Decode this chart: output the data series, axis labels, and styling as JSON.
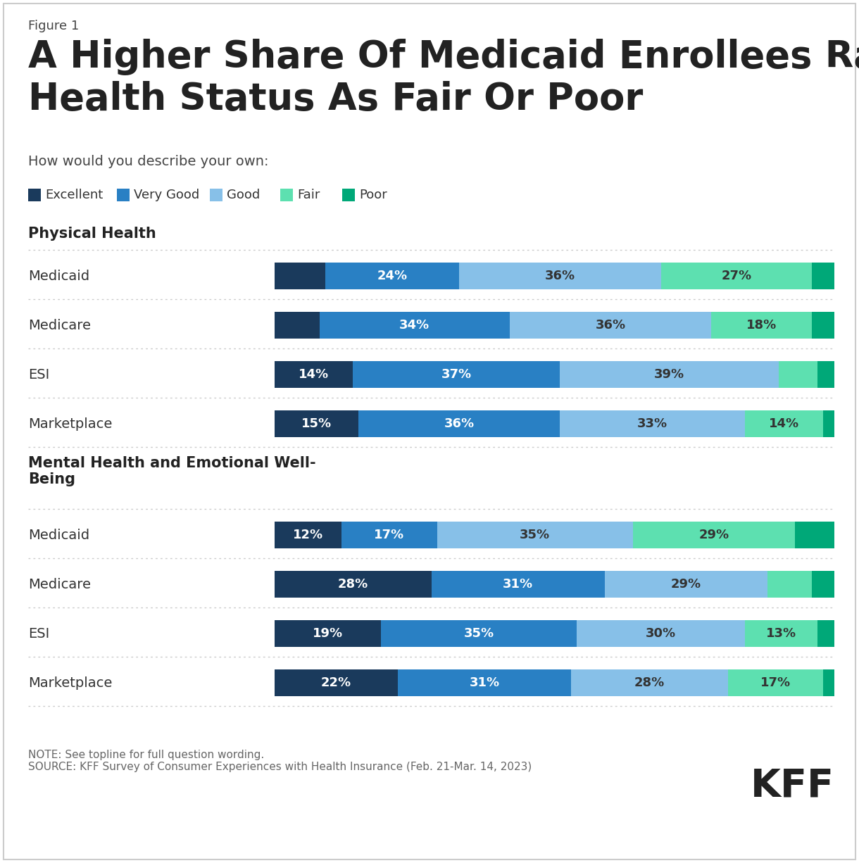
{
  "figure_label": "Figure 1",
  "title": "A Higher Share Of Medicaid Enrollees Rate Their\nHealth Status As Fair Or Poor",
  "subtitle": "How would you describe your own:",
  "categories": [
    "Excellent",
    "Very Good",
    "Good",
    "Fair",
    "Poor"
  ],
  "colors": [
    "#1a3a5c",
    "#2980c4",
    "#87c0e8",
    "#5de0b0",
    "#00a878"
  ],
  "section1_label": "Physical Health",
  "section2_label": "Mental Health and Emotional Well-\nBeing",
  "rows": [
    {
      "label": "Medicaid",
      "values": [
        9,
        24,
        36,
        27,
        4
      ],
      "show_vals": [
        false,
        true,
        true,
        true,
        false
      ]
    },
    {
      "label": "Medicare",
      "values": [
        8,
        34,
        36,
        18,
        4
      ],
      "show_vals": [
        false,
        true,
        true,
        true,
        false
      ]
    },
    {
      "label": "ESI",
      "values": [
        14,
        37,
        39,
        7,
        3
      ],
      "show_vals": [
        true,
        true,
        true,
        false,
        false
      ]
    },
    {
      "label": "Marketplace",
      "values": [
        15,
        36,
        33,
        14,
        2
      ],
      "show_vals": [
        true,
        true,
        true,
        true,
        false
      ]
    }
  ],
  "rows2": [
    {
      "label": "Medicaid",
      "values": [
        12,
        17,
        35,
        29,
        7
      ],
      "show_vals": [
        true,
        true,
        true,
        true,
        false
      ]
    },
    {
      "label": "Medicare",
      "values": [
        28,
        31,
        29,
        8,
        4
      ],
      "show_vals": [
        true,
        true,
        true,
        false,
        false
      ]
    },
    {
      "label": "ESI",
      "values": [
        19,
        35,
        30,
        13,
        3
      ],
      "show_vals": [
        true,
        true,
        true,
        true,
        false
      ]
    },
    {
      "label": "Marketplace",
      "values": [
        22,
        31,
        28,
        17,
        2
      ],
      "show_vals": [
        true,
        true,
        true,
        true,
        false
      ]
    }
  ],
  "note": "NOTE: See topline for full question wording.\nSOURCE: KFF Survey of Consumer Experiences with Health Insurance (Feb. 21-Mar. 14, 2023)",
  "bg_color": "#ffffff",
  "text_color": "#333333"
}
